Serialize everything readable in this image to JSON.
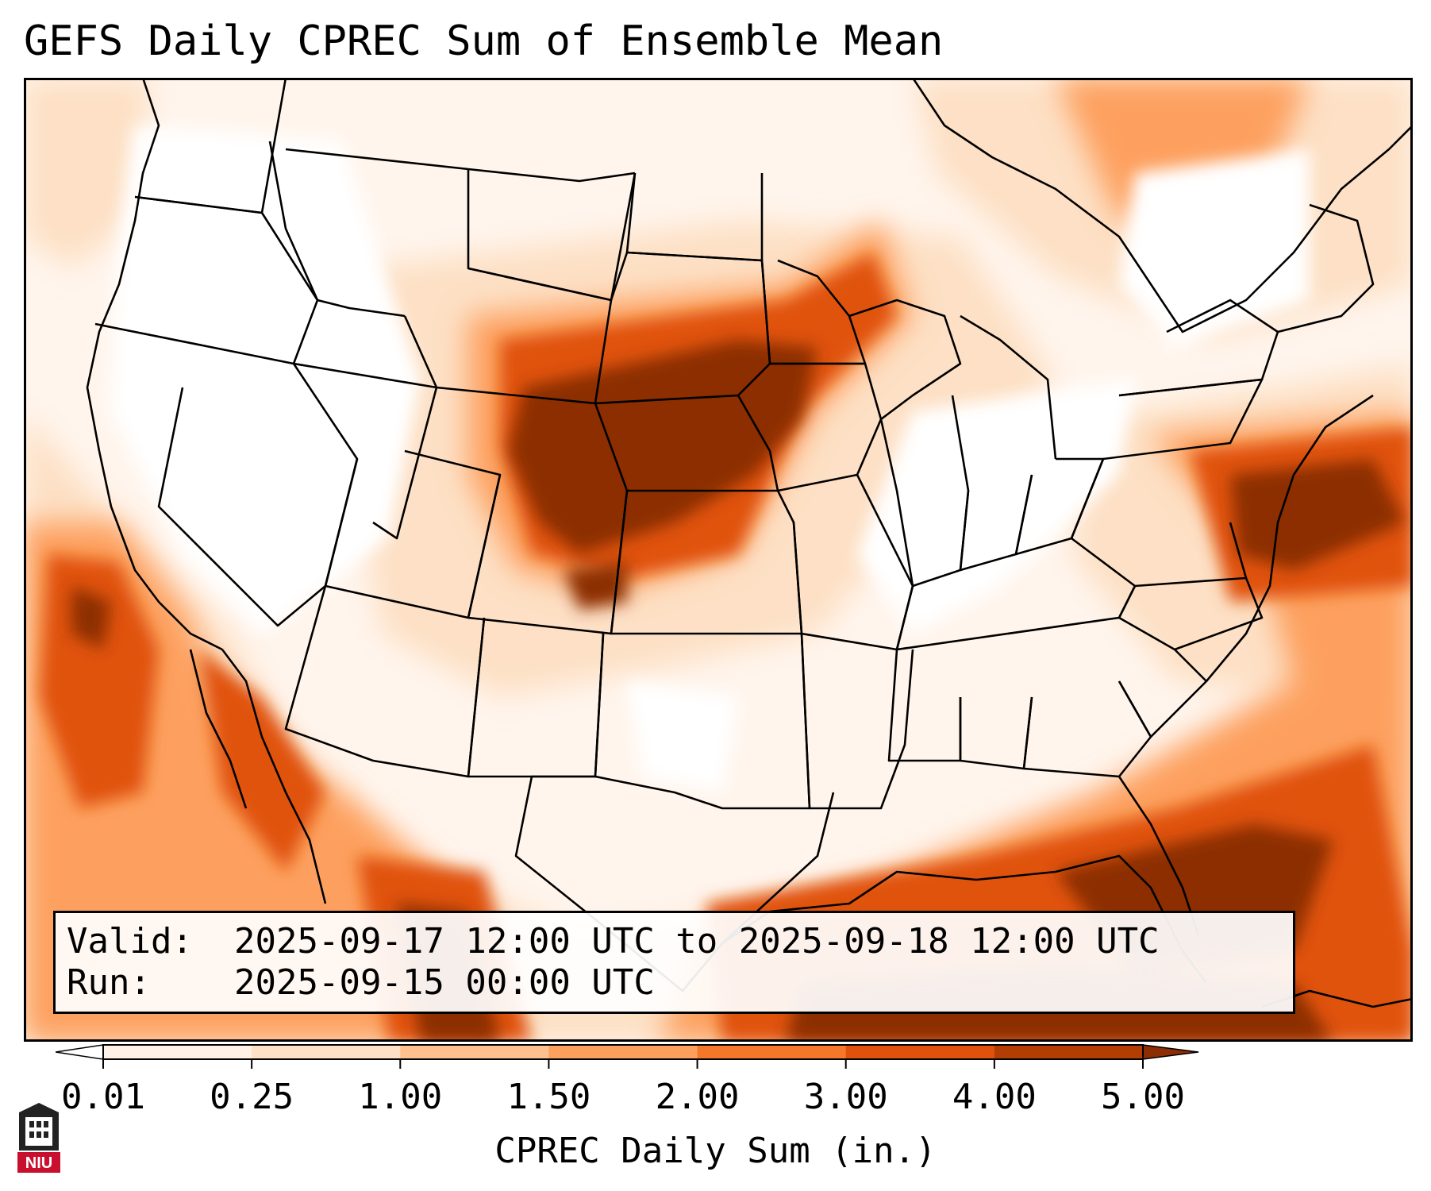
{
  "header": {
    "title": "GEFS Daily CPREC Sum of Ensemble Mean"
  },
  "info": {
    "valid_label": "Valid:",
    "valid_value": "2025-09-17 12:00 UTC to 2025-09-18 12:00 UTC",
    "run_label": "Run:",
    "run_value": "2025-09-15 00:00 UTC"
  },
  "colorbar": {
    "label": "CPREC Daily Sum (in.)",
    "ticks": [
      "0.01",
      "0.25",
      "1.00",
      "1.50",
      "2.00",
      "3.00",
      "4.00",
      "5.00"
    ],
    "colors": [
      "#fff1e6",
      "#fde0c5",
      "#fdc08e",
      "#fda05e",
      "#f5782a",
      "#e0520b",
      "#b33e04",
      "#8c2d04"
    ],
    "under_color": "#ffffff",
    "over_color": "#8c2d04"
  },
  "map": {
    "region": "CONUS",
    "precip_levels": {
      "light": "#fde0c5",
      "moderate": "#fda05e",
      "heavy": "#e0520b",
      "extreme": "#8c2d04"
    }
  },
  "logo": {
    "text": "NIU",
    "color": "#c8102e"
  }
}
